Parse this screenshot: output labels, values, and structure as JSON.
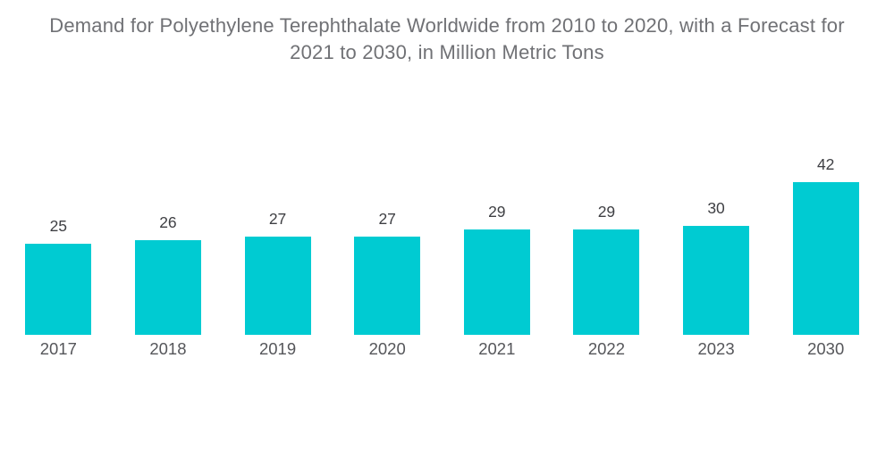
{
  "chart_data": {
    "type": "bar",
    "title": "Demand for Polyethylene Terephthalate Worldwide from 2010 to 2020, with a Forecast for 2021 to 2030, in Million Metric Tons",
    "title_lines": [
      "Demand for Polyethylene Terephthalate Worldwide from 2010 to 2020, with a Forecast for",
      "2021 to 2030, in Million Metric Tons"
    ],
    "categories": [
      "2017",
      "2018",
      "2019",
      "2020",
      "2021",
      "2022",
      "2023",
      "2030"
    ],
    "values": [
      25,
      26,
      27,
      27,
      29,
      29,
      30,
      42
    ],
    "unit": "Million Metric Tons",
    "ylim": [
      0,
      45
    ],
    "grid": false,
    "legend": false,
    "xlabel": "",
    "ylabel": "",
    "colors": {
      "bar": "#00cbd2",
      "title_text": "#707175",
      "value_label_text": "#3e3f43",
      "category_label_text": "#55565a",
      "background": "#ffffff"
    }
  }
}
